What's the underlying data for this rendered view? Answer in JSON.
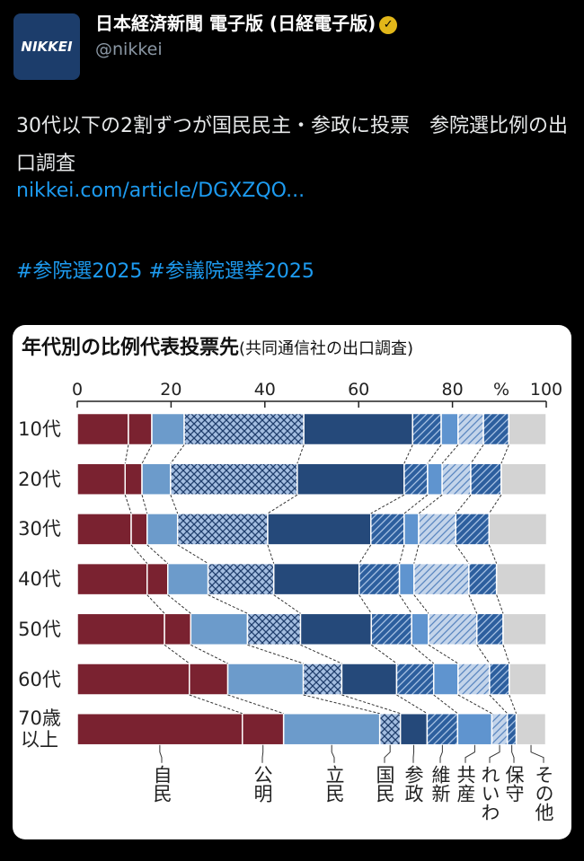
{
  "avatar": {
    "label": "NIKKEI"
  },
  "account": {
    "name": "日本経済新聞 電子版 (日経電子版)",
    "handle": "@nikkei"
  },
  "post": {
    "text": "30代以下の2割ずつが国民民主・参政に投票　参院選比例の出口調査",
    "link": "nikkei.com/article/DGXZQO...",
    "hashtags": "#参院選2025 #参議院選挙2025"
  },
  "chart_data": {
    "type": "stacked_barh",
    "title": "年代別の比例代表投票先",
    "subtitle": "(共同通信社の出口調査)",
    "xlabel": "%",
    "categories": [
      "10代",
      "20代",
      "30代",
      "40代",
      "50代",
      "60代",
      "70歳以上"
    ],
    "xlim": [
      0,
      100
    ],
    "xticks": [
      0,
      20,
      40,
      60,
      80,
      100
    ],
    "series": [
      {
        "name": "自民",
        "color": "#7a2230",
        "pattern": "none",
        "values": [
          10.9,
          10.2,
          11.5,
          14.9,
          18.6,
          23.9,
          35.2
        ]
      },
      {
        "name": "公明",
        "color": "#7a2230",
        "pattern": "none",
        "values": [
          5.0,
          3.6,
          3.4,
          4.4,
          5.6,
          8.2,
          8.8
        ]
      },
      {
        "name": "立民",
        "color": "#6c9bcb",
        "pattern": "none",
        "values": [
          6.9,
          6.1,
          6.5,
          8.6,
          12.1,
          16.1,
          20.5
        ]
      },
      {
        "name": "国民",
        "color": "#a3bde0",
        "pattern": "crosshatch",
        "pattern_color": "#1f3d6b",
        "values": [
          25.5,
          27.0,
          19.2,
          14.0,
          11.3,
          8.2,
          4.4
        ]
      },
      {
        "name": "参政",
        "color": "#25497a",
        "pattern": "none",
        "values": [
          23.2,
          22.8,
          22.0,
          18.2,
          15.1,
          11.7,
          5.7
        ]
      },
      {
        "name": "維新",
        "color": "#2d5f9e",
        "pattern": "hatch",
        "pattern_color": "#a9c3e4",
        "values": [
          6.1,
          5.0,
          7.1,
          8.6,
          8.6,
          7.9,
          6.5
        ]
      },
      {
        "name": "共産",
        "color": "#5f94cf",
        "pattern": "none",
        "values": [
          3.6,
          3.1,
          3.1,
          3.1,
          3.6,
          5.2,
          7.3
        ]
      },
      {
        "name": "れいわ",
        "color": "#c3d4ea",
        "pattern": "hatch",
        "pattern_color": "#5a86c0",
        "values": [
          5.4,
          6.1,
          7.9,
          11.7,
          10.3,
          6.7,
          3.3
        ]
      },
      {
        "name": "保守",
        "color": "#2d5f9e",
        "pattern": "hatch",
        "pattern_color": "#a9c3e4",
        "values": [
          5.4,
          6.5,
          7.1,
          5.9,
          5.6,
          4.2,
          1.9
        ]
      },
      {
        "name": "その他",
        "color": "#d3d3d3",
        "pattern": "none",
        "values": [
          8.0,
          9.6,
          12.3,
          10.5,
          9.2,
          7.9,
          6.3
        ]
      }
    ]
  }
}
